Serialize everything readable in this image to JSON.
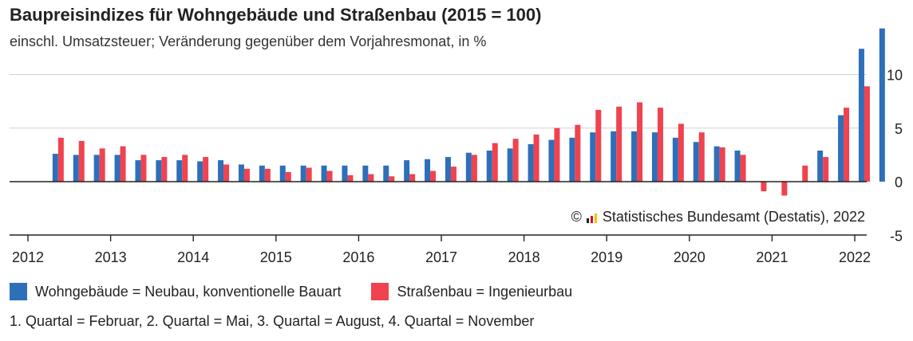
{
  "title": "Baupreisindizes für Wohngebäude und Straßenbau (2015 = 100)",
  "subtitle": "einschl. Umsatzsteuer; Veränderung gegenüber dem Vorjahresmonat, in %",
  "credit": {
    "copyright": "©",
    "text": "Statistisches Bundesamt (Destatis), 2022"
  },
  "legend": [
    {
      "label": "Wohngebäude = Neubau, konventionelle Bauart",
      "color": "#2e6fba"
    },
    {
      "label": "Straßenbau = Ingenieurbau",
      "color": "#f0424f"
    }
  ],
  "footnote": "1. Quartal = Februar, 2. Quartal = Mai, 3. Quartal = August, 4. Quartal = November",
  "chart_data": {
    "type": "bar",
    "x_axis": {
      "ticks": [
        "2012",
        "2013",
        "2014",
        "2015",
        "2016",
        "2017",
        "2018",
        "2019",
        "2020",
        "2021",
        "2022"
      ]
    },
    "y_axis": {
      "ticks": [
        -5,
        0,
        5,
        10
      ],
      "ylim": [
        -5,
        14.5
      ],
      "position": "right",
      "grid": true
    },
    "categories": [
      "2012 Q2",
      "2012 Q3",
      "2012 Q4",
      "2013 Q1",
      "2013 Q2",
      "2013 Q3",
      "2013 Q4",
      "2014 Q1",
      "2014 Q2",
      "2014 Q3",
      "2014 Q4",
      "2015 Q1",
      "2015 Q2",
      "2015 Q3",
      "2015 Q4",
      "2016 Q1",
      "2016 Q2",
      "2016 Q3",
      "2016 Q4",
      "2017 Q1",
      "2017 Q2",
      "2017 Q3",
      "2017 Q4",
      "2018 Q1",
      "2018 Q2",
      "2018 Q3",
      "2018 Q4",
      "2019 Q1",
      "2019 Q2",
      "2019 Q3",
      "2019 Q4",
      "2020 Q1",
      "2020 Q2",
      "2020 Q3",
      "2020 Q4",
      "2021 Q1",
      "2021 Q2",
      "2021 Q3",
      "2021 Q4",
      "2022 Q1",
      "2022 Q2"
    ],
    "series": [
      {
        "name": "Wohngebäude = Neubau, konventionelle Bauart",
        "color": "#2e6fba",
        "values": [
          2.6,
          2.5,
          2.5,
          2.5,
          2.0,
          2.0,
          2.0,
          1.9,
          2.0,
          1.6,
          1.5,
          1.5,
          1.5,
          1.5,
          1.5,
          1.5,
          1.5,
          2.0,
          2.1,
          2.3,
          2.7,
          2.9,
          3.1,
          3.5,
          3.9,
          4.1,
          4.6,
          4.7,
          4.7,
          4.6,
          4.1,
          3.7,
          3.3,
          2.9,
          null,
          null,
          null,
          2.9,
          6.2,
          12.4,
          14.3
        ]
      },
      {
        "name": "Straßenbau = Ingenieurbau",
        "color": "#f0424f",
        "values": [
          4.1,
          3.8,
          3.1,
          3.3,
          2.5,
          2.3,
          2.5,
          2.3,
          1.6,
          1.2,
          1.2,
          0.9,
          1.3,
          1.0,
          0.6,
          0.7,
          0.5,
          0.7,
          1.0,
          1.4,
          2.5,
          3.6,
          4.0,
          4.4,
          5.0,
          5.3,
          6.7,
          7.0,
          7.4,
          6.9,
          5.4,
          4.6,
          3.2,
          2.5,
          -0.9,
          -1.3,
          1.5,
          2.3,
          6.9,
          8.9,
          null
        ]
      }
    ]
  }
}
